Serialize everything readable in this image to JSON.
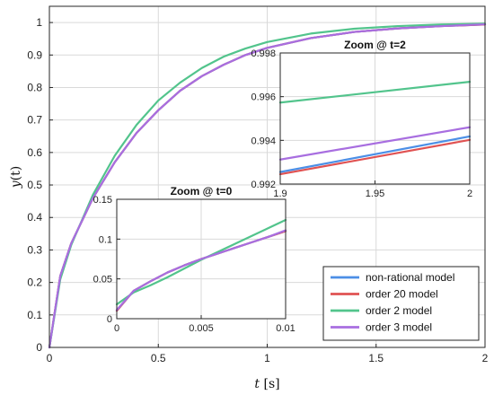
{
  "chart_data": [
    {
      "id": "main",
      "type": "line",
      "title": "",
      "xlabel_var": "t",
      "xlabel_unit": "[s]",
      "ylabel_var": "y",
      "ylabel_arg": "(t)",
      "xlim": [
        0,
        2
      ],
      "ylim": [
        0,
        1.05
      ],
      "xticks": [
        0,
        0.5,
        1,
        1.5,
        2
      ],
      "xtick_labels": [
        "0",
        "0.5",
        "1",
        "1.5",
        "2"
      ],
      "yticks": [
        0,
        0.1,
        0.2,
        0.3,
        0.4,
        0.5,
        0.6,
        0.7,
        0.8,
        0.9,
        1
      ],
      "ytick_labels": [
        "0",
        "0.1",
        "0.2",
        "0.3",
        "0.4",
        "0.5",
        "0.6",
        "0.7",
        "0.8",
        "0.9",
        "1"
      ],
      "grid": true,
      "x": [
        0,
        0.05,
        0.1,
        0.2,
        0.3,
        0.4,
        0.5,
        0.6,
        0.7,
        0.8,
        0.9,
        1.0,
        1.2,
        1.4,
        1.6,
        1.8,
        2.0
      ],
      "series": [
        {
          "name": "non-rational model",
          "color": "#4c8fe6",
          "values": [
            0,
            0.22,
            0.32,
            0.46,
            0.57,
            0.66,
            0.73,
            0.79,
            0.835,
            0.87,
            0.9,
            0.922,
            0.952,
            0.971,
            0.982,
            0.989,
            0.994
          ]
        },
        {
          "name": "order 20 model",
          "color": "#e05252",
          "values": [
            0,
            0.22,
            0.32,
            0.46,
            0.57,
            0.66,
            0.73,
            0.79,
            0.835,
            0.87,
            0.9,
            0.922,
            0.952,
            0.971,
            0.982,
            0.989,
            0.994
          ]
        },
        {
          "name": "order 2 model",
          "color": "#52c48c",
          "values": [
            0,
            0.21,
            0.315,
            0.47,
            0.59,
            0.685,
            0.76,
            0.815,
            0.86,
            0.895,
            0.92,
            0.94,
            0.966,
            0.981,
            0.989,
            0.994,
            0.9967
          ]
        },
        {
          "name": "order 3 model",
          "color": "#a86ee0",
          "values": [
            0,
            0.22,
            0.32,
            0.46,
            0.57,
            0.66,
            0.73,
            0.79,
            0.835,
            0.87,
            0.9,
            0.922,
            0.952,
            0.971,
            0.982,
            0.989,
            0.9946
          ]
        }
      ],
      "legend_position": "bottom-right"
    },
    {
      "id": "zoom2",
      "type": "line",
      "title": "Zoom @ t=2",
      "xlim": [
        1.9,
        2
      ],
      "ylim": [
        0.992,
        0.998
      ],
      "xticks": [
        1.9,
        1.95,
        2
      ],
      "xtick_labels": [
        "1.9",
        "1.95",
        "2"
      ],
      "yticks": [
        0.992,
        0.994,
        0.996,
        0.998
      ],
      "ytick_labels": [
        "0.992",
        "0.994",
        "0.996",
        "0.998"
      ],
      "grid": true,
      "x": [
        1.9,
        2.0
      ],
      "series": [
        {
          "name": "non-rational model",
          "color": "#4c8fe6",
          "values": [
            0.99255,
            0.99418
          ]
        },
        {
          "name": "order 20 model",
          "color": "#e05252",
          "values": [
            0.99245,
            0.99402
          ]
        },
        {
          "name": "order 2 model",
          "color": "#52c48c",
          "values": [
            0.99573,
            0.99668
          ]
        },
        {
          "name": "order 3 model",
          "color": "#a86ee0",
          "values": [
            0.99312,
            0.9946
          ]
        }
      ]
    },
    {
      "id": "zoom0",
      "type": "line",
      "title": "Zoom @ t=0",
      "xlim": [
        0,
        0.01
      ],
      "ylim": [
        0,
        0.15
      ],
      "xticks": [
        0,
        0.005,
        0.01
      ],
      "xtick_labels": [
        "0",
        "0.005",
        "0.01"
      ],
      "yticks": [
        0,
        0.05,
        0.1,
        0.15
      ],
      "ytick_labels": [
        "0",
        "0.05",
        "0.1",
        "0.15"
      ],
      "grid": true,
      "x": [
        0,
        0.001,
        0.002,
        0.003,
        0.004,
        0.005,
        0.006,
        0.007,
        0.008,
        0.009,
        0.01
      ],
      "series": [
        {
          "name": "non-rational model",
          "color": "#4c8fe6",
          "values": [
            0.01,
            0.035,
            0.047,
            0.058,
            0.067,
            0.075,
            0.082,
            0.089,
            0.096,
            0.103,
            0.11
          ]
        },
        {
          "name": "order 20 model",
          "color": "#e05252",
          "values": [
            0.01,
            0.035,
            0.047,
            0.058,
            0.067,
            0.075,
            0.082,
            0.089,
            0.096,
            0.103,
            0.11
          ]
        },
        {
          "name": "order 2 model",
          "color": "#52c48c",
          "values": [
            0.018,
            0.033,
            0.042,
            0.052,
            0.063,
            0.074,
            0.084,
            0.094,
            0.104,
            0.114,
            0.124
          ]
        },
        {
          "name": "order 3 model",
          "color": "#a86ee0",
          "values": [
            0.011,
            0.035,
            0.047,
            0.058,
            0.067,
            0.075,
            0.082,
            0.089,
            0.096,
            0.103,
            0.111
          ]
        }
      ]
    }
  ]
}
